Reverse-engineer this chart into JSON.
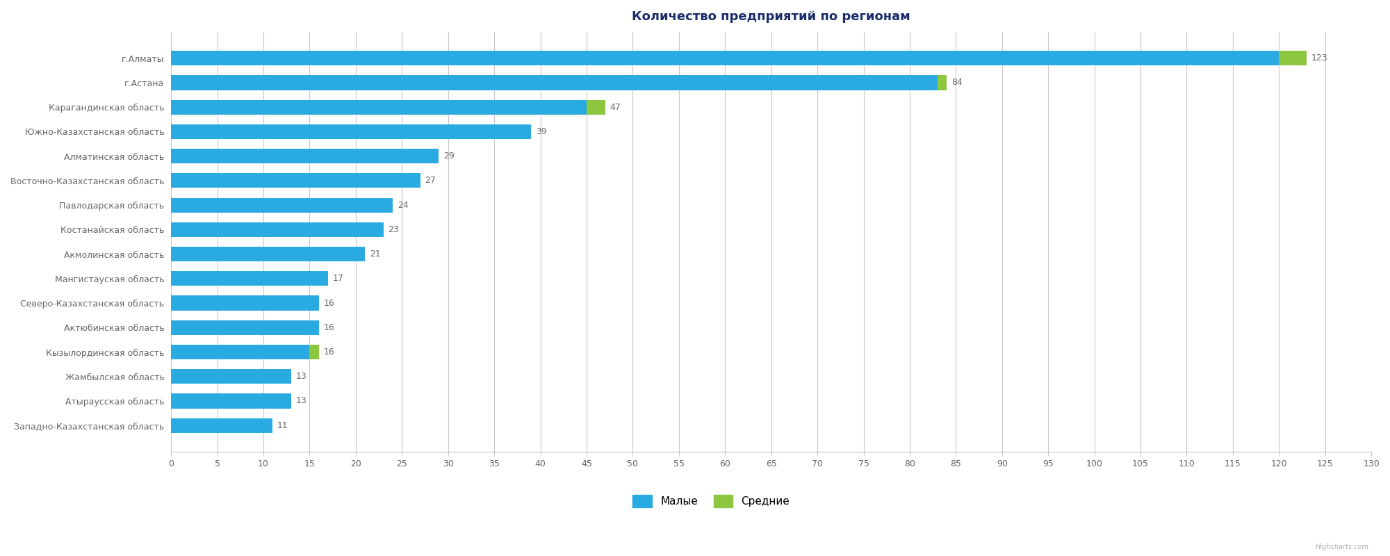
{
  "title": "Количество предприятий по регионам",
  "categories": [
    "г.Алматы",
    "г.Астана",
    "Карагандинская область",
    "Южно-Казахстанская область",
    "Алматинская область",
    "Восточно-Казахстанская область",
    "Павлодарская область",
    "Костанайская область",
    "Акмолинская область",
    "Мангистауская область",
    "Северо-Казахстанская область",
    "Актюбинская область",
    "Кызылординская область",
    "Жамбылская область",
    "Атыраусская область",
    "Западно-Казахстанская область"
  ],
  "malye": [
    120,
    83,
    45,
    39,
    29,
    27,
    24,
    23,
    21,
    17,
    16,
    16,
    15,
    13,
    13,
    11
  ],
  "srednie": [
    3,
    1,
    2,
    0,
    0,
    0,
    0,
    0,
    0,
    0,
    0,
    0,
    1,
    0,
    0,
    0
  ],
  "malye_labels": [
    null,
    null,
    null,
    39,
    29,
    27,
    24,
    23,
    21,
    17,
    16,
    16,
    null,
    13,
    13,
    11
  ],
  "srednie_labels": [
    123,
    84,
    47,
    null,
    null,
    null,
    null,
    null,
    null,
    null,
    null,
    null,
    16,
    null,
    null,
    null
  ],
  "color_malye": "#29ABE2",
  "color_srednie": "#8DC63F",
  "color_grid": "#C8C8C8",
  "color_bg": "#FFFFFF",
  "color_title": "#1A2D6B",
  "color_labels": "#666666",
  "xlim": [
    0,
    130
  ],
  "xticks": [
    0,
    5,
    10,
    15,
    20,
    25,
    30,
    35,
    40,
    45,
    50,
    55,
    60,
    65,
    70,
    75,
    80,
    85,
    90,
    95,
    100,
    105,
    110,
    115,
    120,
    125,
    130
  ],
  "legend_malye": "Малые",
  "legend_srednie": "Средние",
  "bar_height": 0.6,
  "label_fontsize": 9,
  "tick_fontsize": 9,
  "title_fontsize": 13,
  "ytick_fontsize": 9
}
